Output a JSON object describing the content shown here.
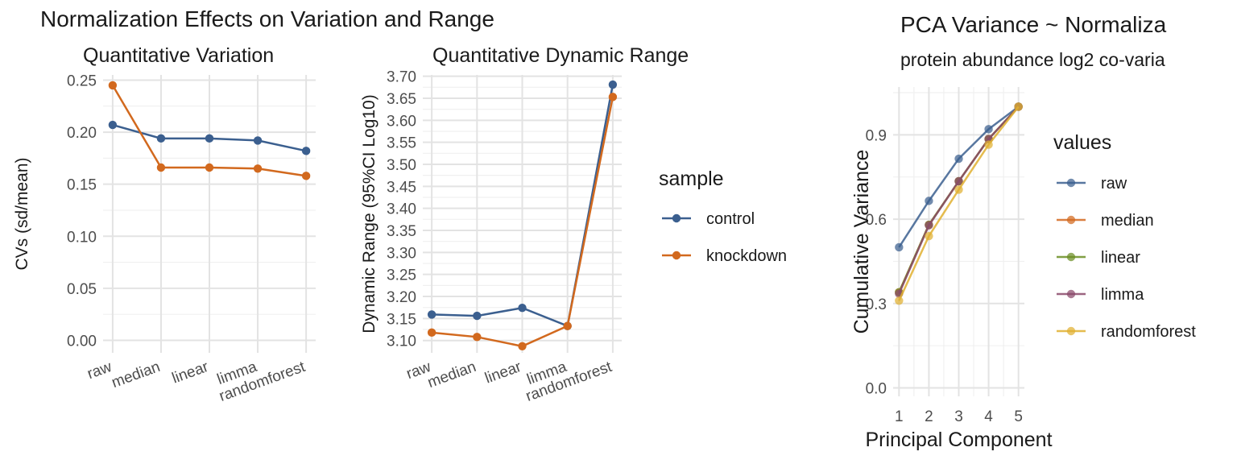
{
  "figure": {
    "title": "Normalization Effects on Variation and Range"
  },
  "chart_data": [
    {
      "type": "line",
      "title": "Quantitative Variation",
      "xlabel": "",
      "ylabel": "CVs (sd/mean)",
      "categories": [
        "raw",
        "median",
        "linear",
        "limma",
        "randomforest"
      ],
      "ylim": [
        -0.012,
        0.255
      ],
      "yticks": [
        "0.00",
        "0.05",
        "0.10",
        "0.15",
        "0.20",
        "0.25"
      ],
      "grid": true,
      "legend": "right",
      "series": [
        {
          "name": "control",
          "color": "#3b5f8f",
          "values": [
            0.207,
            0.194,
            0.194,
            0.192,
            0.182
          ]
        },
        {
          "name": "knockdown",
          "color": "#d2691e",
          "values": [
            0.245,
            0.166,
            0.166,
            0.165,
            0.158
          ]
        }
      ]
    },
    {
      "type": "line",
      "title": "Quantitative Dynamic Range",
      "xlabel": "",
      "ylabel": "Dynamic Range (95%CI Log10)",
      "categories": [
        "raw",
        "median",
        "linear",
        "limma",
        "randomforest"
      ],
      "ylim": [
        3.072,
        3.703
      ],
      "yticks": [
        "3.10",
        "3.15",
        "3.20",
        "3.25",
        "3.30",
        "3.35",
        "3.40",
        "3.45",
        "3.50",
        "3.55",
        "3.60",
        "3.65",
        "3.70"
      ],
      "grid": true,
      "legend": "right",
      "series": [
        {
          "name": "control",
          "color": "#3b5f8f",
          "values": [
            3.159,
            3.156,
            3.174,
            3.133,
            3.681
          ]
        },
        {
          "name": "knockdown",
          "color": "#d2691e",
          "values": [
            3.118,
            3.108,
            3.087,
            3.133,
            3.653
          ]
        }
      ]
    },
    {
      "type": "line",
      "title": "PCA Variance ~ Normaliza",
      "subtitle": "protein abundance log2 co-varia",
      "xlabel": "Principal Component",
      "ylabel": "Cumulative Variance",
      "x": [
        1,
        2,
        3,
        4,
        5
      ],
      "ylim": [
        -0.03,
        1.07
      ],
      "yticks": [
        "0.0",
        "0.3",
        "0.6",
        "0.9"
      ],
      "grid": true,
      "legend": "right",
      "series": [
        {
          "name": "raw",
          "color": "#3b5f8f",
          "values": [
            0.5,
            0.665,
            0.815,
            0.92,
            1.0
          ]
        },
        {
          "name": "median",
          "color": "#d2691e",
          "values": [
            0.34,
            0.58,
            0.735,
            0.885,
            1.0
          ]
        },
        {
          "name": "linear",
          "color": "#6b8e23",
          "values": [
            0.34,
            0.58,
            0.735,
            0.885,
            1.0
          ]
        },
        {
          "name": "limma",
          "color": "#8b4a6b",
          "values": [
            0.335,
            0.578,
            0.735,
            0.885,
            1.0
          ]
        },
        {
          "name": "randomforest",
          "color": "#e0b030",
          "values": [
            0.31,
            0.54,
            0.705,
            0.865,
            1.0
          ]
        }
      ]
    }
  ],
  "legends": {
    "sample": {
      "title": "sample",
      "items": [
        "control",
        "knockdown"
      ]
    },
    "values": {
      "title": "values",
      "items": [
        "raw",
        "median",
        "linear",
        "limma",
        "randomforest"
      ]
    }
  }
}
